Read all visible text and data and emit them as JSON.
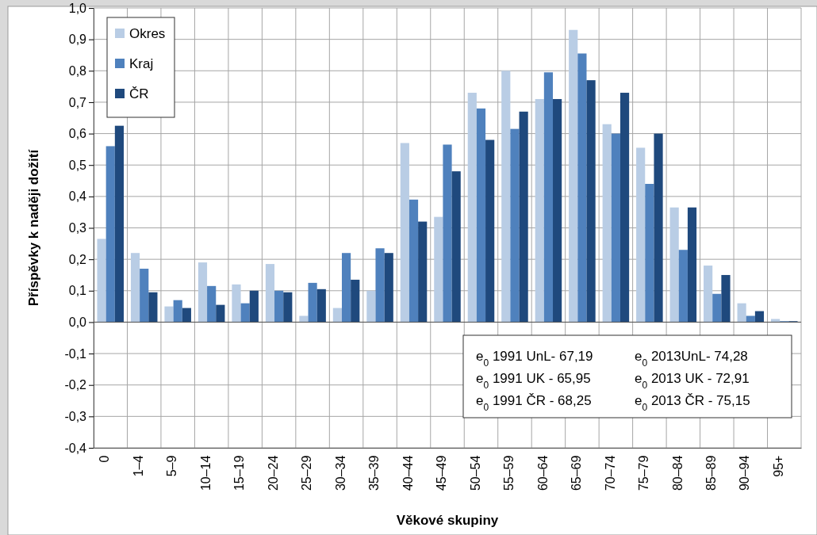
{
  "chart_data": {
    "type": "bar",
    "xlabel": "Věkové skupiny",
    "ylabel": "Příspěvky k naději dožití",
    "categories": [
      "0",
      "1–4",
      "5–9",
      "10–14",
      "15–19",
      "20–24",
      "25–29",
      "30–34",
      "35–39",
      "40–44",
      "45–49",
      "50–54",
      "55–59",
      "60–64",
      "65–69",
      "70–74",
      "75–79",
      "80–84",
      "85–89",
      "90–94",
      "95+"
    ],
    "series": [
      {
        "name": "Okres",
        "color": "#b9cde5",
        "values": [
          0.265,
          0.22,
          0.05,
          0.19,
          0.12,
          0.185,
          0.02,
          0.045,
          0.1,
          0.57,
          0.335,
          0.73,
          0.8,
          0.71,
          0.93,
          0.63,
          0.555,
          0.365,
          0.18,
          0.06,
          0.01
        ]
      },
      {
        "name": "Kraj",
        "color": "#4f81bd",
        "values": [
          0.56,
          0.17,
          0.07,
          0.115,
          0.06,
          0.1,
          0.125,
          0.22,
          0.235,
          0.39,
          0.565,
          0.68,
          0.615,
          0.795,
          0.855,
          0.6,
          0.44,
          0.23,
          0.09,
          0.02,
          0.003
        ]
      },
      {
        "name": "ČR",
        "color": "#1f497d",
        "values": [
          0.625,
          0.095,
          0.045,
          0.055,
          0.1,
          0.095,
          0.105,
          0.135,
          0.22,
          0.32,
          0.48,
          0.58,
          0.67,
          0.71,
          0.77,
          0.73,
          0.6,
          0.365,
          0.15,
          0.035,
          0.003
        ]
      }
    ],
    "ylim": [
      -0.4,
      1
    ],
    "yticks": [
      {
        "value": -0.4,
        "label": "-0,4"
      },
      {
        "value": -0.3,
        "label": "-0,3"
      },
      {
        "value": -0.2,
        "label": "-0,2"
      },
      {
        "value": -0.1,
        "label": "-0,1"
      },
      {
        "value": 0,
        "label": "0,0"
      },
      {
        "value": 0.1,
        "label": "0,1"
      },
      {
        "value": 0.2,
        "label": "0,2"
      },
      {
        "value": 0.3,
        "label": "0,3"
      },
      {
        "value": 0.4,
        "label": "0,4"
      },
      {
        "value": 0.5,
        "label": "0,5"
      },
      {
        "value": 0.6,
        "label": "0,6"
      },
      {
        "value": 0.7,
        "label": "0,7"
      },
      {
        "value": 0.8,
        "label": "0,8"
      },
      {
        "value": 0.9,
        "label": "0,9"
      },
      {
        "value": 1,
        "label": "1,0"
      }
    ],
    "grid": true,
    "legend": "top left",
    "annotations": [
      "e$_{0}$ 1991 UnL- 67,19",
      "e$_{0}$ 1991 UK - 65,95",
      "e$_{0}$ 1991 ČR - 68,25",
      "e$_{0}$ 2013UnL- 74,28",
      "e$_{0}$ 2013 UK - 72,91",
      "e$_{0}$ 2013 ČR - 75,15"
    ]
  }
}
